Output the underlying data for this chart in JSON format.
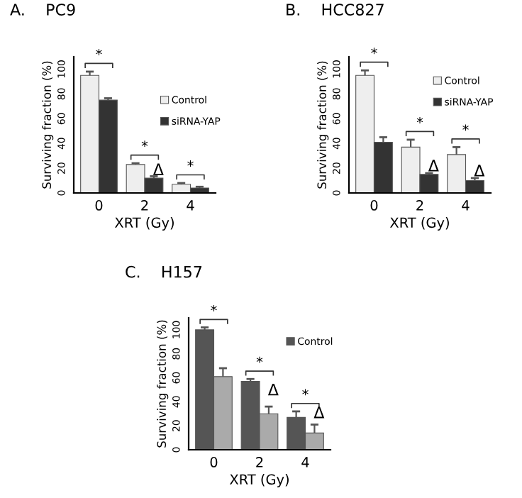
{
  "chart_data": [
    {
      "type": "bar",
      "title": "A.    PC9",
      "xlabel": "XRT (Gy)",
      "ylabel": "Surviving fraction (%)",
      "categories": [
        "0",
        "2",
        "4"
      ],
      "ylim": [
        0,
        110
      ],
      "yticks": [
        0,
        20,
        40,
        60,
        80,
        100
      ],
      "grid": false,
      "legend": "right",
      "series": [
        {
          "name": "Control",
          "color": "#eeeeee",
          "values": [
            95,
            23,
            7
          ],
          "errors": [
            3,
            1,
            1
          ]
        },
        {
          "name": "siRNA-YAP",
          "color": "#333333",
          "values": [
            75,
            12,
            4
          ],
          "errors": [
            1.5,
            1.5,
            1
          ]
        }
      ],
      "annotations": [
        "*",
        "*",
        "*",
        {
          "text": "Δ",
          "x": "2",
          "y": 18
        }
      ]
    },
    {
      "type": "bar",
      "title": "B.    HCC827",
      "xlabel": "XRT (Gy)",
      "ylabel": "Surviving fraction (%)",
      "categories": [
        "0",
        "2",
        "4"
      ],
      "ylim": [
        0,
        110
      ],
      "yticks": [
        0,
        20,
        40,
        60,
        80,
        100
      ],
      "grid": false,
      "legend": "top right",
      "series": [
        {
          "name": "Control",
          "color": "#eeeeee",
          "values": [
            95,
            37,
            31
          ],
          "errors": [
            4,
            6,
            6
          ]
        },
        {
          "name": "siRNA-YAP",
          "color": "#333333",
          "values": [
            41,
            15,
            10
          ],
          "errors": [
            4,
            1,
            2
          ]
        }
      ],
      "annotations": [
        "*",
        "*",
        "*",
        {
          "text": "Δ",
          "x": "2",
          "y": 21
        },
        {
          "text": "Δ",
          "x": "4",
          "y": 17
        }
      ]
    },
    {
      "type": "bar",
      "title": "C.    H157",
      "xlabel": "XRT (Gy)",
      "ylabel": "Surviving fraction (%)",
      "categories": [
        "0",
        "2",
        "4"
      ],
      "ylim": [
        0,
        110
      ],
      "yticks": [
        0,
        20,
        40,
        60,
        80,
        100
      ],
      "grid": false,
      "legend": "top right",
      "series": [
        {
          "name": "Control",
          "color": "#555555",
          "values": [
            100,
            57,
            27
          ],
          "errors": [
            2,
            2,
            5
          ]
        },
        {
          "color": "#aaaaaa",
          "values": [
            61,
            30,
            14
          ],
          "errors": [
            7,
            6,
            7
          ]
        }
      ],
      "annotations": [
        "*",
        "*",
        "*",
        {
          "text": "Δ",
          "x": "2",
          "y": 49
        },
        {
          "text": "Δ",
          "x": "4",
          "y": 30
        }
      ]
    }
  ]
}
